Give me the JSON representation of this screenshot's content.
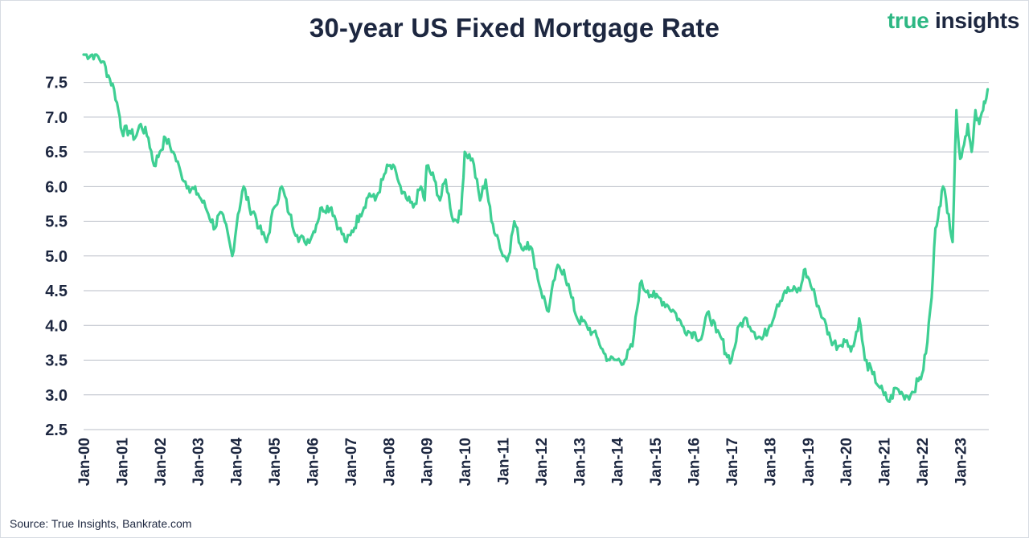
{
  "header": {
    "title": "30-year US Fixed Mortgage Rate",
    "brand_word1": "true",
    "brand_word2": "insights"
  },
  "footer": {
    "source": "Source: True Insights, Bankrate.com"
  },
  "colors": {
    "line": "#3ecf93",
    "grid": "#b9bec7",
    "text": "#1d2740",
    "brand_green": "#2db783"
  },
  "chart_data": {
    "type": "line",
    "title": "30-year US Fixed Mortgage Rate",
    "xlabel": "",
    "ylabel": "",
    "ylim": [
      2.5,
      7.9
    ],
    "yticks": [
      2.5,
      3.0,
      3.5,
      4.0,
      4.5,
      5.0,
      5.5,
      6.0,
      6.5,
      7.0,
      7.5
    ],
    "ytick_labels": [
      "2.5",
      "3.0",
      "3.5",
      "4.0",
      "4.5",
      "5.0",
      "5.5",
      "6.0",
      "6.5",
      "7.0",
      "7.5"
    ],
    "xlim": [
      2000.0,
      2023.75
    ],
    "xticks": [
      2000,
      2001,
      2002,
      2003,
      2004,
      2005,
      2006,
      2007,
      2008,
      2009,
      2010,
      2011,
      2012,
      2013,
      2014,
      2015,
      2016,
      2017,
      2018,
      2019,
      2020,
      2021,
      2022,
      2023
    ],
    "xtick_labels": [
      "Jan-00",
      "Jan-01",
      "Jan-02",
      "Jan-03",
      "Jan-04",
      "Jan-05",
      "Jan-06",
      "Jan-07",
      "Jan-08",
      "Jan-09",
      "Jan-10",
      "Jan-11",
      "Jan-12",
      "Jan-13",
      "Jan-14",
      "Jan-15",
      "Jan-16",
      "Jan-17",
      "Jan-18",
      "Jan-19",
      "Jan-20",
      "Jan-21",
      "Jan-22",
      "Jan-23"
    ],
    "grid": true,
    "legend": "none",
    "series": [
      {
        "x": [
          2000.0,
          2000.3,
          2000.5,
          2000.65,
          2000.8,
          2000.95,
          2001.0,
          2001.2,
          2001.35,
          2001.5,
          2001.7,
          2001.85,
          2002.0,
          2002.15,
          2002.35,
          2002.55,
          2002.75,
          2003.0,
          2003.2,
          2003.45,
          2003.55,
          2003.7,
          2003.9,
          2004.05,
          2004.2,
          2004.35,
          2004.5,
          2004.6,
          2004.8,
          2005.0,
          2005.2,
          2005.4,
          2005.6,
          2005.8,
          2006.0,
          2006.25,
          2006.5,
          2006.7,
          2006.9,
          2007.0,
          2007.25,
          2007.5,
          2007.65,
          2007.85,
          2008.0,
          2008.2,
          2008.35,
          2008.5,
          2008.65,
          2008.85,
          2008.95,
          2009.0,
          2009.2,
          2009.35,
          2009.5,
          2009.7,
          2009.9,
          2010.0,
          2010.2,
          2010.4,
          2010.55,
          2010.7,
          2010.85,
          2011.0,
          2011.15,
          2011.3,
          2011.5,
          2011.65,
          2011.8,
          2012.0,
          2012.2,
          2012.4,
          2012.6,
          2012.8,
          2012.95,
          2013.2,
          2013.35,
          2013.5,
          2013.65,
          2013.8,
          2014.0,
          2014.2,
          2014.4,
          2014.6,
          2014.8,
          2015.0,
          2015.1,
          2015.3,
          2015.5,
          2015.7,
          2015.9,
          2016.0,
          2016.2,
          2016.4,
          2016.6,
          2016.75,
          2016.85,
          2017.0,
          2017.2,
          2017.4,
          2017.6,
          2017.8,
          2018.0,
          2018.2,
          2018.4,
          2018.6,
          2018.8,
          2018.9,
          2019.0,
          2019.2,
          2019.4,
          2019.6,
          2019.8,
          2019.95,
          2020.1,
          2020.2,
          2020.35,
          2020.5,
          2020.7,
          2020.9,
          2021.0,
          2021.15,
          2021.3,
          2021.5,
          2021.7,
          2021.9,
          2022.0,
          2022.1,
          2022.25,
          2022.35,
          2022.45,
          2022.55,
          2022.7,
          2022.8,
          2022.9,
          2023.0,
          2023.1,
          2023.2,
          2023.3,
          2023.4,
          2023.5,
          2023.6,
          2023.65,
          2023.72
        ],
        "values": [
          7.9,
          7.9,
          7.8,
          7.6,
          7.4,
          7.0,
          6.8,
          6.8,
          6.7,
          6.9,
          6.7,
          6.3,
          6.5,
          6.7,
          6.5,
          6.2,
          6.0,
          5.9,
          5.7,
          5.4,
          5.6,
          5.5,
          5.0,
          5.6,
          6.0,
          5.7,
          5.6,
          5.4,
          5.2,
          5.7,
          6.0,
          5.6,
          5.3,
          5.2,
          5.3,
          5.7,
          5.7,
          5.4,
          5.2,
          5.3,
          5.6,
          5.9,
          5.8,
          6.1,
          6.3,
          6.2,
          5.9,
          5.8,
          5.7,
          6.0,
          5.8,
          6.3,
          6.1,
          5.8,
          6.1,
          5.5,
          5.6,
          6.5,
          6.4,
          5.8,
          6.1,
          5.5,
          5.3,
          5.0,
          5.0,
          5.5,
          5.1,
          5.2,
          5.0,
          4.5,
          4.2,
          4.8,
          4.8,
          4.4,
          4.1,
          4.0,
          3.9,
          3.8,
          3.6,
          3.5,
          3.5,
          3.5,
          3.7,
          4.6,
          4.5,
          4.4,
          4.4,
          4.3,
          4.2,
          4.0,
          3.9,
          3.9,
          3.8,
          4.2,
          3.9,
          3.8,
          3.6,
          3.5,
          4.0,
          4.1,
          3.9,
          3.8,
          4.0,
          4.3,
          4.5,
          4.5,
          4.5,
          4.8,
          4.7,
          4.4,
          4.1,
          3.8,
          3.7,
          3.8,
          3.7,
          3.7,
          4.1,
          3.5,
          3.3,
          3.1,
          3.0,
          2.9,
          3.1,
          3.0,
          3.0,
          3.2,
          3.3,
          3.6,
          4.4,
          5.4,
          5.7,
          6.0,
          5.6,
          5.2,
          7.1,
          6.4,
          6.6,
          6.9,
          6.5,
          7.1,
          6.9,
          7.1,
          7.2,
          7.4
        ]
      }
    ]
  }
}
